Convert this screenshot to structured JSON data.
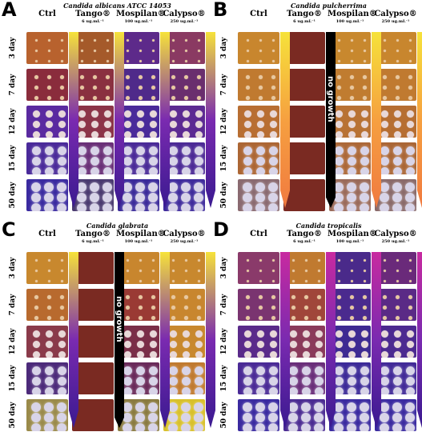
{
  "panels": [
    {
      "letter": "A",
      "title": "Candida albicans ATCC 14053",
      "columns": [
        {
          "name": "Ctrl",
          "sub": ""
        },
        {
          "name": "Tango®",
          "sub": "6 ug.mL⁻¹"
        },
        {
          "name": "Mospilan®",
          "sub": "100 ug.mL⁻¹"
        },
        {
          "name": "Calypso®",
          "sub": "250 ug.mL⁻¹"
        }
      ],
      "rows": [
        "3 day",
        "7 day",
        "12 day",
        "15 day",
        "50 day"
      ],
      "no_growth_label": "",
      "plate_colors": [
        [
          "#b8622e",
          "#a55a2a",
          "#5d2a8a",
          "#8a3a62"
        ],
        [
          "#8a2c3c",
          "#8a3040",
          "#4f2a8a",
          "#6a2e6e"
        ],
        [
          "#5a2aa0",
          "#8c3448",
          "#4a2a9a",
          "#5c2a92"
        ],
        [
          "#4a2a9a",
          "#6a3078",
          "#4a2a98",
          "#4c2a96"
        ],
        [
          "#3a2aa0",
          "#4a3a70",
          "#3a2a9a",
          "#3e2a9c"
        ]
      ],
      "arrow_colors": [
        "#f6e23a",
        "#7a2ab0",
        "#3a1a90"
      ]
    },
    {
      "letter": "B",
      "title": "Candida pulcherrima",
      "columns": [
        {
          "name": "Ctrl",
          "sub": ""
        },
        {
          "name": "Tango®",
          "sub": "6 ug.mL⁻¹"
        },
        {
          "name": "Mospilan®",
          "sub": "100 ug.mL⁻¹"
        },
        {
          "name": "Calypso®",
          "sub": "250 ug.mL⁻¹"
        }
      ],
      "rows": [
        "3 day",
        "7 day",
        "12 day",
        "15 day",
        "50 day"
      ],
      "no_growth_label": "no growth",
      "plate_colors": [
        [
          "#c8862e",
          "#7a2a22",
          "#c8882e",
          "#c8862e"
        ],
        [
          "#c07a30",
          "#7a2a22",
          "#c07c30",
          "#c07a30"
        ],
        [
          "#b86e32",
          "#7a2a22",
          "#b87234",
          "#b66e32"
        ],
        [
          "#ac6634",
          "#7a2a22",
          "#ac6838",
          "#aa6636"
        ],
        [
          "#8a6a70",
          "#7a2a22",
          "#9a6a5a",
          "#8a6a6a"
        ]
      ],
      "arrow_colors": [
        "#f6e23a",
        "#f6a040",
        "#f07a40"
      ]
    },
    {
      "letter": "C",
      "title": "Candida glabrata",
      "columns": [
        {
          "name": "Ctrl",
          "sub": ""
        },
        {
          "name": "Tango®",
          "sub": "6 ug.mL⁻¹"
        },
        {
          "name": "Mospilan®",
          "sub": "100 ug.mL⁻¹"
        },
        {
          "name": "Calypso®",
          "sub": "250 ug.mL⁻¹"
        }
      ],
      "rows": [
        "3 day",
        "7 day",
        "12 day",
        "15 day",
        "50 day"
      ],
      "no_growth_label": "no growth",
      "plate_colors": [
        [
          "#c8882e",
          "#7a2a22",
          "#c8862e",
          "#c8882e"
        ],
        [
          "#b86a2e",
          "#7a2a22",
          "#9a3a34",
          "#c8862e"
        ],
        [
          "#8a3a4a",
          "#7a2a22",
          "#7a2e48",
          "#c8882e"
        ],
        [
          "#4c2a7a",
          "#7a2a22",
          "#6a2a5a",
          "#c07a30"
        ],
        [
          "#9a8a4a",
          "#7a2a22",
          "#8a7a40",
          "#d8c02a"
        ]
      ],
      "arrow_colors": [
        "#f6e23a",
        "#7a2ab0",
        "#3a1a90"
      ]
    },
    {
      "letter": "D",
      "title": "Candida tropicalis",
      "columns": [
        {
          "name": "Ctrl",
          "sub": ""
        },
        {
          "name": "Tango®",
          "sub": "6 ug.mL⁻¹"
        },
        {
          "name": "Mospilan®",
          "sub": "100 ug.mL⁻¹"
        },
        {
          "name": "Calypso®",
          "sub": "250 ug.mL⁻¹"
        }
      ],
      "rows": [
        "3 day",
        "7 day",
        "12 day",
        "15 day",
        "50 day"
      ],
      "no_growth_label": "",
      "plate_colors": [
        [
          "#8a3a6a",
          "#c07a30",
          "#4a2a8a",
          "#6a2a7a"
        ],
        [
          "#7a3470",
          "#a0463a",
          "#4a2a8e",
          "#5a2a86"
        ],
        [
          "#5a2a8a",
          "#8a3a5a",
          "#3e2a92",
          "#4c2a90"
        ],
        [
          "#4a2a96",
          "#6a2e7a",
          "#3c2a98",
          "#422a98"
        ],
        [
          "#3a2aa0",
          "#4a2a92",
          "#3a2aa0",
          "#3a2aa0"
        ]
      ],
      "arrow_colors": [
        "#c82aa0",
        "#7a2ab0",
        "#3a1a90"
      ]
    }
  ]
}
